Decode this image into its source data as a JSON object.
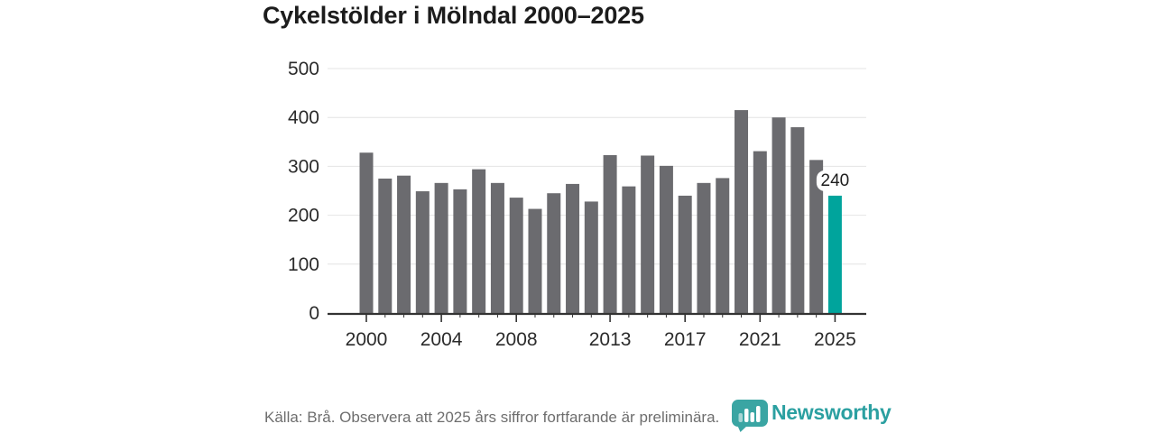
{
  "title": "Cykelstölder i Mölndal 2000–2025",
  "footer": {
    "source_note": "Källa: Brå. Observera att 2025 års siffror fortfarande är preliminära.",
    "brand": "Newsworthy"
  },
  "colors": {
    "bar_default": "#6b6b6f",
    "bar_highlight": "#00a49c",
    "grid": "#e4e4e4",
    "axis": "#333333",
    "tick_text": "#2b2b2b",
    "title_text": "#1c1c1c",
    "footer_text": "#6e6e6e",
    "brand_teal": "#3aa5a3",
    "annotation_text": "#1d1d1d",
    "annotation_bg": "#ffffff"
  },
  "chart_data": {
    "type": "bar",
    "title": "Cykelstölder i Mölndal 2000–2025",
    "categories": [
      2000,
      2001,
      2002,
      2003,
      2004,
      2005,
      2006,
      2007,
      2008,
      2009,
      2010,
      2011,
      2012,
      2013,
      2014,
      2015,
      2016,
      2017,
      2018,
      2019,
      2020,
      2021,
      2022,
      2023,
      2024,
      2025
    ],
    "values": [
      328,
      275,
      281,
      249,
      266,
      253,
      294,
      266,
      236,
      213,
      245,
      264,
      228,
      323,
      259,
      322,
      301,
      240,
      266,
      276,
      415,
      331,
      400,
      380,
      313,
      240
    ],
    "highlight_category": 2025,
    "annotation": {
      "category": 2025,
      "label": "240"
    },
    "x_tick_labels": [
      2000,
      2004,
      2008,
      2013,
      2017,
      2021,
      2025
    ],
    "y_ticks": [
      0,
      100,
      200,
      300,
      400,
      500
    ],
    "ylim": [
      0,
      500
    ],
    "xlabel": "",
    "ylabel": "",
    "grid": "horizontal",
    "legend": "none"
  }
}
